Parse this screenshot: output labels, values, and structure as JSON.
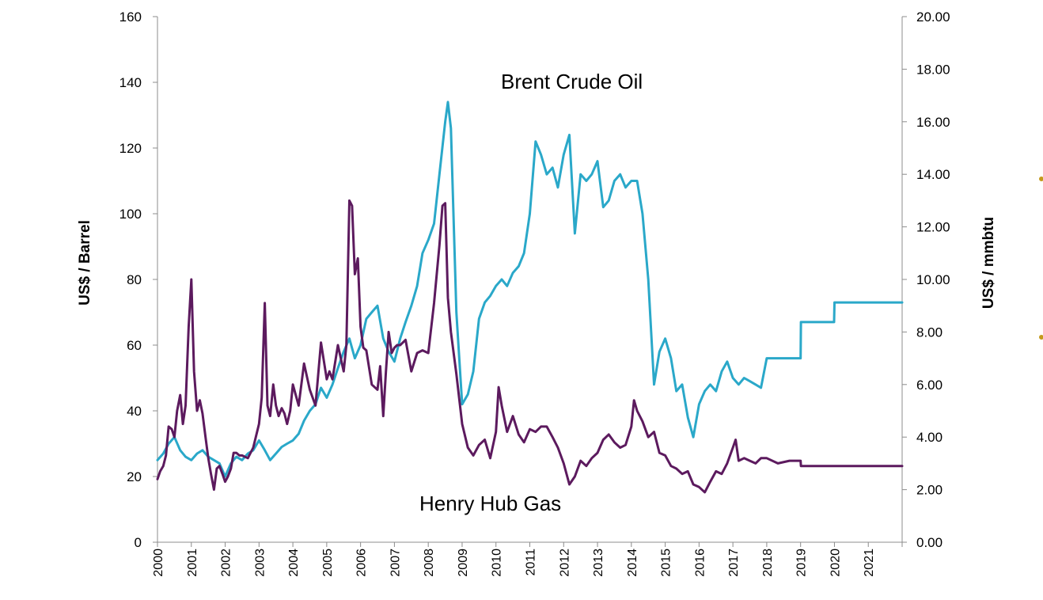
{
  "chart_data": {
    "type": "line",
    "title": "",
    "x_axis": {
      "ticks": [
        "2000",
        "2001",
        "2002",
        "2003",
        "2004",
        "2005",
        "2006",
        "2007",
        "2008",
        "2009",
        "2010",
        "2011",
        "2012",
        "2013",
        "2014",
        "2015",
        "2016",
        "2017",
        "2018",
        "2019",
        "2020",
        "2021"
      ],
      "range": [
        2000,
        2022
      ]
    },
    "y_left": {
      "label": "US$ / Barrel",
      "range": [
        0,
        160
      ],
      "ticks": [
        "0",
        "20",
        "40",
        "60",
        "80",
        "100",
        "120",
        "140",
        "160"
      ]
    },
    "y_right": {
      "label": "US$ / mmbtu",
      "range": [
        0,
        20
      ],
      "ticks": [
        "0.00",
        "2.00",
        "4.00",
        "6.00",
        "8.00",
        "10.00",
        "12.00",
        "14.00",
        "16.00",
        "18.00",
        "20.00"
      ]
    },
    "annotations": {
      "brent": "Brent Crude Oil",
      "henry": "Henry Hub Gas"
    },
    "grid": false,
    "legend": "none",
    "series": [
      {
        "name": "Brent Crude Oil",
        "axis": "left",
        "color": "#2aa8c9",
        "x": [
          2000.0,
          2000.17,
          2000.33,
          2000.5,
          2000.67,
          2000.83,
          2001.0,
          2001.17,
          2001.33,
          2001.5,
          2001.67,
          2001.83,
          2002.0,
          2002.17,
          2002.33,
          2002.5,
          2002.67,
          2002.83,
          2003.0,
          2003.17,
          2003.33,
          2003.5,
          2003.67,
          2003.83,
          2004.0,
          2004.17,
          2004.33,
          2004.5,
          2004.67,
          2004.83,
          2005.0,
          2005.17,
          2005.33,
          2005.5,
          2005.67,
          2005.83,
          2006.0,
          2006.17,
          2006.33,
          2006.5,
          2006.67,
          2006.83,
          2007.0,
          2007.17,
          2007.33,
          2007.5,
          2007.67,
          2007.83,
          2008.0,
          2008.17,
          2008.33,
          2008.5,
          2008.58,
          2008.67,
          2008.83,
          2009.0,
          2009.17,
          2009.33,
          2009.5,
          2009.67,
          2009.83,
          2010.0,
          2010.17,
          2010.33,
          2010.5,
          2010.67,
          2010.83,
          2011.0,
          2011.17,
          2011.33,
          2011.5,
          2011.67,
          2011.83,
          2012.0,
          2012.17,
          2012.33,
          2012.5,
          2012.67,
          2012.83,
          2013.0,
          2013.17,
          2013.33,
          2013.5,
          2013.67,
          2013.83,
          2014.0,
          2014.17,
          2014.33,
          2014.5,
          2014.67,
          2014.83,
          2015.0,
          2015.17,
          2015.33,
          2015.5,
          2015.67,
          2015.83,
          2016.0,
          2016.17,
          2016.33,
          2016.5,
          2016.67,
          2016.83,
          2017.0,
          2017.17,
          2017.33,
          2017.5,
          2017.67,
          2017.83,
          2018.0,
          2018.5,
          2019.0,
          2019.01,
          2019.99,
          2020.0,
          2020.99,
          2021.0,
          2022.0
        ],
        "values": [
          25,
          27,
          30,
          32,
          28,
          26,
          25,
          27,
          28,
          26,
          25,
          24,
          20,
          24,
          26,
          25,
          27,
          28,
          31,
          28,
          25,
          27,
          29,
          30,
          31,
          33,
          37,
          40,
          42,
          47,
          44,
          48,
          53,
          58,
          62,
          56,
          60,
          68,
          70,
          72,
          62,
          58,
          55,
          62,
          67,
          72,
          78,
          88,
          92,
          97,
          112,
          128,
          134,
          126,
          70,
          42,
          45,
          52,
          68,
          73,
          75,
          78,
          80,
          78,
          82,
          84,
          88,
          100,
          122,
          118,
          112,
          114,
          108,
          118,
          124,
          94,
          112,
          110,
          112,
          116,
          102,
          104,
          110,
          112,
          108,
          110,
          110,
          100,
          80,
          48,
          58,
          62,
          56,
          46,
          48,
          38,
          32,
          42,
          46,
          48,
          46,
          52,
          55,
          50,
          48,
          50,
          49,
          48,
          47,
          56,
          56,
          56,
          67,
          67,
          73,
          73,
          73,
          73
        ],
        "hover": ""
      },
      {
        "name": "Henry Hub Gas",
        "axis": "right",
        "color": "#5c1a5e",
        "x": [
          2000.0,
          2000.08,
          2000.17,
          2000.25,
          2000.33,
          2000.42,
          2000.5,
          2000.58,
          2000.67,
          2000.75,
          2000.83,
          2000.92,
          2001.0,
          2001.08,
          2001.17,
          2001.25,
          2001.33,
          2001.42,
          2001.5,
          2001.58,
          2001.67,
          2001.75,
          2001.83,
          2001.92,
          2002.0,
          2002.08,
          2002.17,
          2002.25,
          2002.33,
          2002.42,
          2002.5,
          2002.67,
          2002.83,
          2003.0,
          2003.08,
          2003.17,
          2003.25,
          2003.33,
          2003.42,
          2003.5,
          2003.58,
          2003.67,
          2003.75,
          2003.83,
          2003.92,
          2004.0,
          2004.17,
          2004.33,
          2004.5,
          2004.67,
          2004.83,
          2005.0,
          2005.08,
          2005.17,
          2005.33,
          2005.5,
          2005.58,
          2005.67,
          2005.75,
          2005.83,
          2005.92,
          2006.0,
          2006.08,
          2006.17,
          2006.33,
          2006.5,
          2006.58,
          2006.67,
          2006.75,
          2006.83,
          2006.92,
          2007.0,
          2007.08,
          2007.17,
          2007.33,
          2007.5,
          2007.67,
          2007.83,
          2008.0,
          2008.17,
          2008.33,
          2008.42,
          2008.5,
          2008.58,
          2008.67,
          2008.83,
          2009.0,
          2009.17,
          2009.33,
          2009.5,
          2009.67,
          2009.83,
          2010.0,
          2010.08,
          2010.17,
          2010.33,
          2010.5,
          2010.67,
          2010.83,
          2011.0,
          2011.17,
          2011.33,
          2011.5,
          2011.67,
          2011.83,
          2012.0,
          2012.17,
          2012.33,
          2012.5,
          2012.67,
          2012.83,
          2013.0,
          2013.17,
          2013.33,
          2013.5,
          2013.67,
          2013.83,
          2014.0,
          2014.08,
          2014.17,
          2014.33,
          2014.5,
          2014.67,
          2014.83,
          2015.0,
          2015.17,
          2015.33,
          2015.5,
          2015.67,
          2015.83,
          2016.0,
          2016.17,
          2016.33,
          2016.5,
          2016.67,
          2016.83,
          2017.0,
          2017.08,
          2017.17,
          2017.33,
          2017.5,
          2017.67,
          2017.83,
          2018.0,
          2018.33,
          2018.67,
          2019.0,
          2019.01,
          2019.99,
          2020.0,
          2020.99,
          2021.0,
          2022.0
        ],
        "values": [
          2.4,
          2.7,
          2.9,
          3.3,
          4.4,
          4.3,
          4.0,
          5.0,
          5.6,
          4.5,
          5.2,
          8.2,
          10.0,
          6.5,
          5.0,
          5.4,
          4.9,
          4.0,
          3.2,
          2.6,
          2.0,
          2.8,
          2.9,
          2.6,
          2.3,
          2.5,
          2.8,
          3.4,
          3.4,
          3.3,
          3.3,
          3.2,
          3.6,
          4.5,
          5.5,
          9.1,
          5.2,
          4.8,
          6.0,
          5.2,
          4.8,
          5.1,
          4.9,
          4.5,
          5.0,
          6.0,
          5.2,
          6.8,
          5.8,
          5.2,
          7.6,
          6.2,
          6.5,
          6.2,
          7.5,
          6.5,
          7.5,
          13.0,
          12.8,
          10.2,
          10.8,
          8.2,
          7.4,
          7.3,
          6.0,
          5.8,
          6.7,
          4.8,
          6.5,
          8.0,
          7.2,
          7.4,
          7.5,
          7.5,
          7.7,
          6.5,
          7.2,
          7.3,
          7.2,
          9.1,
          11.3,
          12.8,
          12.9,
          9.3,
          8.0,
          6.4,
          4.5,
          3.6,
          3.3,
          3.7,
          3.9,
          3.2,
          4.2,
          5.9,
          5.2,
          4.2,
          4.8,
          4.1,
          3.8,
          4.3,
          4.2,
          4.4,
          4.4,
          4.0,
          3.6,
          3.0,
          2.2,
          2.5,
          3.1,
          2.9,
          3.2,
          3.4,
          3.9,
          4.1,
          3.8,
          3.6,
          3.7,
          4.4,
          5.4,
          5.0,
          4.6,
          4.0,
          4.2,
          3.4,
          3.3,
          2.9,
          2.8,
          2.6,
          2.7,
          2.2,
          2.1,
          1.9,
          2.3,
          2.7,
          2.6,
          3.0,
          3.6,
          3.9,
          3.1,
          3.2,
          3.1,
          3.0,
          3.2,
          3.2,
          3.0,
          3.1,
          3.1,
          2.9,
          2.9,
          2.9,
          2.9,
          2.9,
          2.9
        ],
        "hover": ""
      }
    ]
  }
}
